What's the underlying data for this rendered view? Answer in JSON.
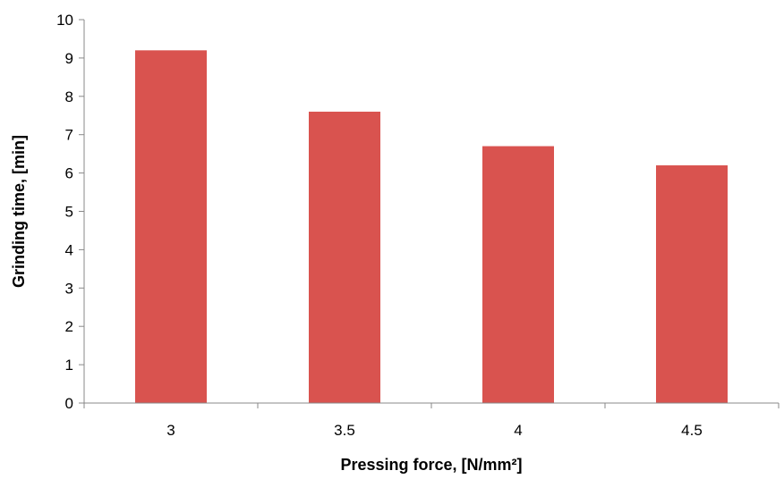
{
  "chart_data": {
    "type": "bar",
    "title": "",
    "xlabel": "Pressing force, [N/mm²]",
    "ylabel": "Grinding time, [min]",
    "categories": [
      "3",
      "3.5",
      "4",
      "4.5"
    ],
    "values": [
      9.2,
      7.6,
      6.7,
      6.2
    ],
    "ylim": [
      0,
      10
    ],
    "yticks": [
      "0",
      "1",
      "2",
      "3",
      "4",
      "5",
      "6",
      "7",
      "8",
      "9",
      "10"
    ],
    "grid": false,
    "legend": "none",
    "bar_color": "#d9534f",
    "axis_color": "#888888"
  }
}
